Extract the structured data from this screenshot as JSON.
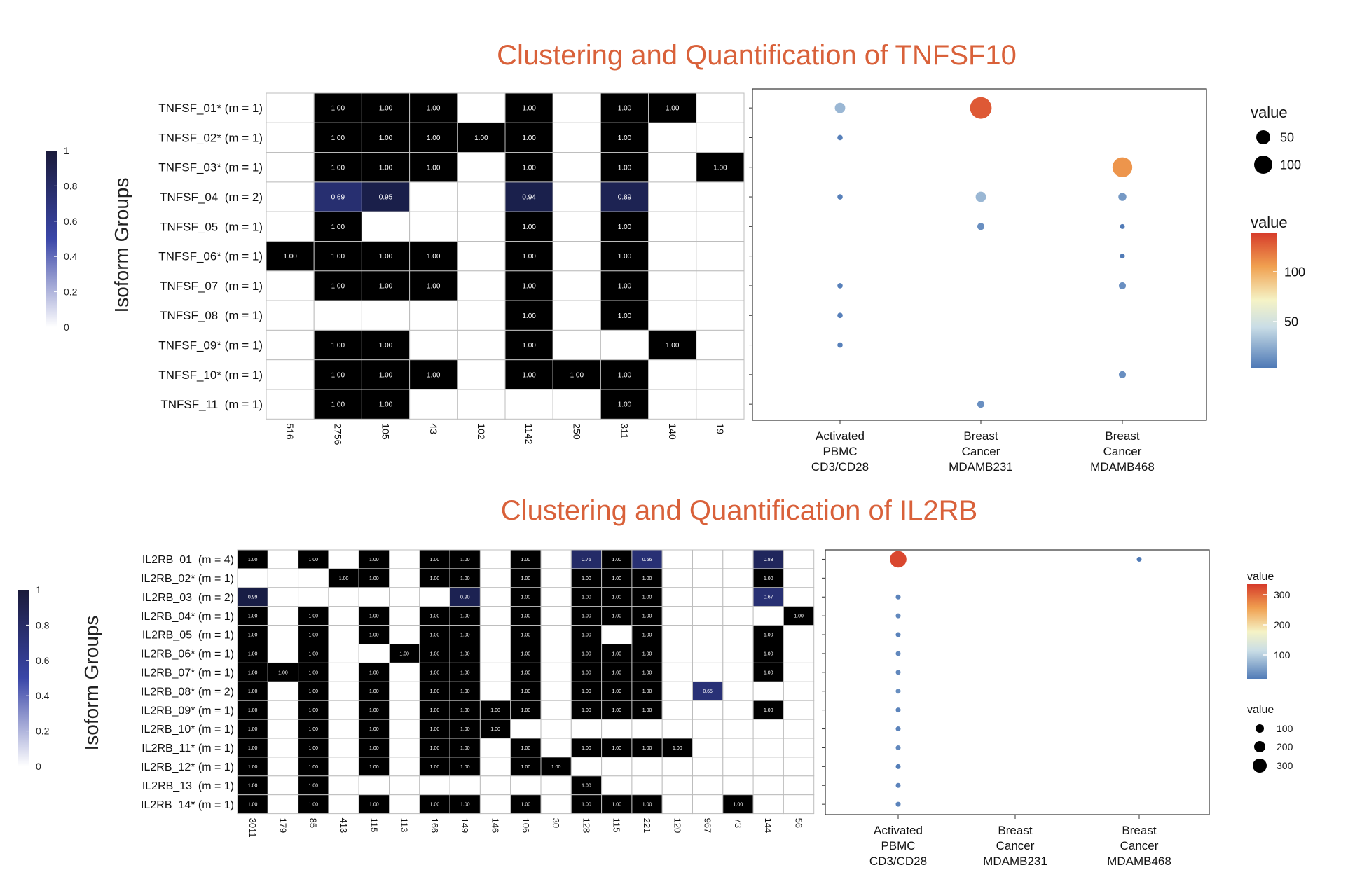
{
  "colors": {
    "title": "#d9613a",
    "cell_high": "#000000",
    "cell_low": "#ffffff",
    "grid": "#bdbdbd",
    "dot_low": "#4e79b6",
    "dot_mid": "#f5f3c6",
    "dot_high": "#d63b2a",
    "seq_high": "#1a1a3a",
    "seq_mid": "#3a46a8",
    "seq_low": "#ffffff"
  },
  "chart_data": [
    {
      "type": "heatmap",
      "title": "Clustering and Quantification of TNFSF10",
      "ylabel": "Isoform Groups",
      "colorbar_ticks": [
        "0",
        "0.2",
        "0.4",
        "0.6",
        "0.8",
        "1"
      ],
      "rows": [
        "TNFSF_01* (m = 1)",
        "TNFSF_02* (m = 1)",
        "TNFSF_03* (m = 1)",
        "TNFSF_04  (m = 2)",
        "TNFSF_05  (m = 1)",
        "TNFSF_06* (m = 1)",
        "TNFSF_07  (m = 1)",
        "TNFSF_08  (m = 1)",
        "TNFSF_09* (m = 1)",
        "TNFSF_10* (m = 1)",
        "TNFSF_11  (m = 1)"
      ],
      "columns": [
        "516",
        "2756",
        "105",
        "43",
        "102",
        "1142",
        "250",
        "311",
        "140",
        "19"
      ],
      "cells": [
        [
          null,
          "1.00",
          "1.00",
          "1.00",
          null,
          "1.00",
          null,
          "1.00",
          "1.00",
          null
        ],
        [
          null,
          "1.00",
          "1.00",
          "1.00",
          "1.00",
          "1.00",
          null,
          "1.00",
          null,
          null
        ],
        [
          null,
          "1.00",
          "1.00",
          "1.00",
          null,
          "1.00",
          null,
          "1.00",
          null,
          "1.00"
        ],
        [
          null,
          "0.69",
          "0.95",
          null,
          null,
          "0.94",
          null,
          "0.89",
          null,
          null
        ],
        [
          null,
          "1.00",
          null,
          null,
          null,
          "1.00",
          null,
          "1.00",
          null,
          null
        ],
        [
          "1.00",
          "1.00",
          "1.00",
          "1.00",
          null,
          "1.00",
          null,
          "1.00",
          null,
          null
        ],
        [
          null,
          "1.00",
          "1.00",
          "1.00",
          null,
          "1.00",
          null,
          "1.00",
          null,
          null
        ],
        [
          null,
          null,
          null,
          null,
          null,
          "1.00",
          null,
          "1.00",
          null,
          null
        ],
        [
          null,
          "1.00",
          "1.00",
          null,
          null,
          "1.00",
          null,
          null,
          "1.00",
          null
        ],
        [
          null,
          "1.00",
          "1.00",
          "1.00",
          null,
          "1.00",
          "1.00",
          "1.00",
          null,
          null
        ],
        [
          null,
          "1.00",
          "1.00",
          null,
          null,
          null,
          null,
          "1.00",
          null,
          null
        ]
      ],
      "dotplot": {
        "type": "scatter",
        "categories": [
          "Activated\nPBMC\nCD3/CD28",
          "Breast\nCancer\nMDAMB231",
          "Breast\nCancer\nMDAMB468"
        ],
        "values": [
          [
            30,
            130,
            null
          ],
          [
            8,
            null,
            null
          ],
          [
            null,
            null,
            110
          ],
          [
            8,
            30,
            18
          ],
          [
            null,
            14,
            6
          ],
          [
            null,
            null,
            6
          ],
          [
            8,
            null,
            14
          ],
          [
            8,
            null,
            null
          ],
          [
            8,
            null,
            null
          ],
          [
            null,
            null,
            14
          ],
          [
            null,
            14,
            null
          ]
        ],
        "size_legend": {
          "title": "value",
          "labels": [
            "50",
            "100"
          ],
          "values": [
            50,
            100
          ]
        },
        "color_legend": {
          "title": "value",
          "labels": [
            "50",
            "100"
          ],
          "values": [
            50,
            100
          ],
          "range": [
            5,
            140
          ]
        }
      }
    },
    {
      "type": "heatmap",
      "title": "Clustering and Quantification of IL2RB",
      "ylabel": "Isoform Groups",
      "colorbar_ticks": [
        "0",
        "0.2",
        "0.4",
        "0.6",
        "0.8",
        "1"
      ],
      "rows": [
        "IL2RB_01  (m = 4)",
        "IL2RB_02* (m = 1)",
        "IL2RB_03  (m = 2)",
        "IL2RB_04* (m = 1)",
        "IL2RB_05  (m = 1)",
        "IL2RB_06* (m = 1)",
        "IL2RB_07* (m = 1)",
        "IL2RB_08* (m = 2)",
        "IL2RB_09* (m = 1)",
        "IL2RB_10* (m = 1)",
        "IL2RB_11* (m = 1)",
        "IL2RB_12* (m = 1)",
        "IL2RB_13  (m = 1)",
        "IL2RB_14* (m = 1)"
      ],
      "columns": [
        "3011",
        "179",
        "85",
        "413",
        "115",
        "113",
        "166",
        "149",
        "146",
        "106",
        "30",
        "128",
        "115",
        "221",
        "120",
        "967",
        "73",
        "144",
        "56"
      ],
      "cells": [
        [
          "1.00",
          null,
          "1.00",
          null,
          "1.00",
          null,
          "1.00",
          "1.00",
          null,
          "1.00",
          null,
          "0.75",
          "1.00",
          "0.66",
          null,
          null,
          null,
          "0.83",
          null
        ],
        [
          null,
          null,
          null,
          "1.00",
          "1.00",
          null,
          "1.00",
          "1.00",
          null,
          "1.00",
          null,
          "1.00",
          "1.00",
          "1.00",
          null,
          null,
          null,
          "1.00",
          null
        ],
        [
          "0.99",
          null,
          null,
          null,
          null,
          null,
          null,
          "0.90",
          null,
          "1.00",
          null,
          "1.00",
          "1.00",
          "1.00",
          null,
          null,
          null,
          "0.67",
          null
        ],
        [
          "1.00",
          null,
          "1.00",
          null,
          "1.00",
          null,
          "1.00",
          "1.00",
          null,
          "1.00",
          null,
          "1.00",
          "1.00",
          "1.00",
          null,
          null,
          null,
          null,
          "1.00"
        ],
        [
          "1.00",
          null,
          "1.00",
          null,
          "1.00",
          null,
          "1.00",
          "1.00",
          null,
          "1.00",
          null,
          "1.00",
          null,
          "1.00",
          null,
          null,
          null,
          "1.00",
          null
        ],
        [
          "1.00",
          null,
          "1.00",
          null,
          null,
          "1.00",
          "1.00",
          "1.00",
          null,
          "1.00",
          null,
          "1.00",
          "1.00",
          "1.00",
          null,
          null,
          null,
          "1.00",
          null
        ],
        [
          "1.00",
          "1.00",
          "1.00",
          null,
          "1.00",
          null,
          "1.00",
          "1.00",
          null,
          "1.00",
          null,
          "1.00",
          "1.00",
          "1.00",
          null,
          null,
          null,
          "1.00",
          null
        ],
        [
          "1.00",
          null,
          "1.00",
          null,
          "1.00",
          null,
          "1.00",
          "1.00",
          null,
          "1.00",
          null,
          "1.00",
          "1.00",
          "1.00",
          null,
          "0.65",
          null,
          null,
          null
        ],
        [
          "1.00",
          null,
          "1.00",
          null,
          "1.00",
          null,
          "1.00",
          "1.00",
          "1.00",
          "1.00",
          null,
          "1.00",
          "1.00",
          "1.00",
          null,
          null,
          null,
          "1.00",
          null
        ],
        [
          "1.00",
          null,
          "1.00",
          null,
          "1.00",
          null,
          "1.00",
          "1.00",
          "1.00",
          null,
          null,
          null,
          null,
          null,
          null,
          null,
          null,
          null,
          null
        ],
        [
          "1.00",
          null,
          "1.00",
          null,
          "1.00",
          null,
          "1.00",
          "1.00",
          null,
          "1.00",
          null,
          "1.00",
          "1.00",
          "1.00",
          "1.00",
          null,
          null,
          null,
          null
        ],
        [
          "1.00",
          null,
          "1.00",
          null,
          "1.00",
          null,
          "1.00",
          "1.00",
          null,
          "1.00",
          "1.00",
          null,
          null,
          null,
          null,
          null,
          null,
          null,
          null
        ],
        [
          "1.00",
          null,
          "1.00",
          null,
          null,
          null,
          null,
          null,
          null,
          null,
          null,
          "1.00",
          null,
          null,
          null,
          null,
          null,
          null,
          null
        ],
        [
          "1.00",
          null,
          "1.00",
          null,
          "1.00",
          null,
          "1.00",
          "1.00",
          null,
          "1.00",
          null,
          "1.00",
          "1.00",
          "1.00",
          null,
          null,
          "1.00",
          null,
          null
        ]
      ],
      "dotplot": {
        "type": "scatter",
        "categories": [
          "Activated\nPBMC\nCD3/CD28",
          "Breast\nCancer\nMDAMB231",
          "Breast\nCancer\nMDAMB468"
        ],
        "values": [
          [
            320,
            null,
            5
          ],
          [
            null,
            null,
            null
          ],
          [
            15,
            null,
            null
          ],
          [
            20,
            null,
            null
          ],
          [
            15,
            null,
            null
          ],
          [
            20,
            null,
            null
          ],
          [
            20,
            null,
            null
          ],
          [
            25,
            null,
            null
          ],
          [
            15,
            null,
            null
          ],
          [
            15,
            null,
            null
          ],
          [
            20,
            null,
            null
          ],
          [
            10,
            null,
            null
          ],
          [
            15,
            null,
            null
          ],
          [
            15,
            null,
            null
          ]
        ],
        "size_legend": {
          "title": "value",
          "labels": [
            "100",
            "200",
            "300"
          ],
          "values": [
            100,
            200,
            300
          ]
        },
        "color_legend": {
          "title": "value",
          "labels": [
            "100",
            "200",
            "300"
          ],
          "values": [
            100,
            200,
            300
          ],
          "range": [
            5,
            330
          ]
        }
      }
    }
  ]
}
